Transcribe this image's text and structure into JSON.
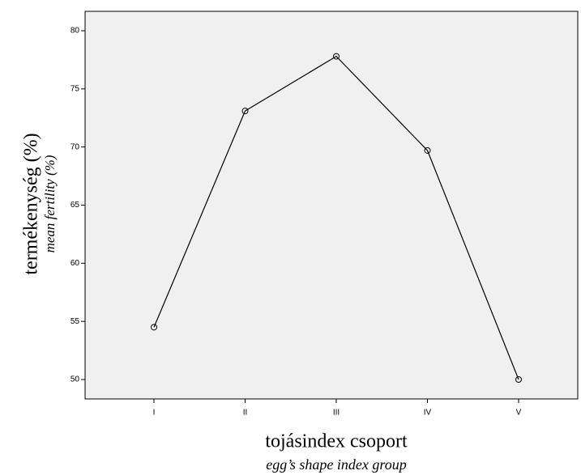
{
  "chart_data": {
    "type": "line",
    "xlabel": "tojásindex csoport",
    "xlabel_translation": "egg’s shape index group",
    "ylabel": "termékenység (%)",
    "ylabel_translation": "mean fertility (%)",
    "categories": [
      "I",
      "II",
      "III",
      "IV",
      "V"
    ],
    "series": [
      {
        "name": "mean fertility",
        "color": "#000000",
        "values": [
          54.5,
          73.1,
          77.8,
          69.7,
          50.0
        ]
      }
    ],
    "ylim": [
      48.33,
      81.67
    ],
    "yticks": [
      50,
      55,
      60,
      65,
      70,
      75,
      80
    ],
    "grid": false
  }
}
